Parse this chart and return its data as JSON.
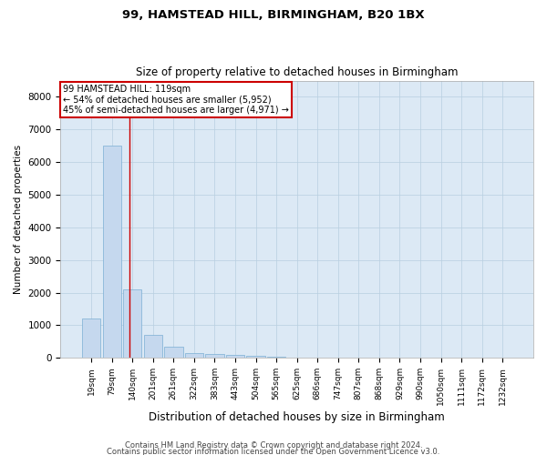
{
  "title1": "99, HAMSTEAD HILL, BIRMINGHAM, B20 1BX",
  "title2": "Size of property relative to detached houses in Birmingham",
  "xlabel": "Distribution of detached houses by size in Birmingham",
  "ylabel": "Number of detached properties",
  "categories": [
    "19sqm",
    "79sqm",
    "140sqm",
    "201sqm",
    "261sqm",
    "322sqm",
    "383sqm",
    "443sqm",
    "504sqm",
    "565sqm",
    "625sqm",
    "686sqm",
    "747sqm",
    "807sqm",
    "868sqm",
    "929sqm",
    "990sqm",
    "1050sqm",
    "1111sqm",
    "1172sqm",
    "1232sqm"
  ],
  "values": [
    1200,
    6500,
    2100,
    700,
    350,
    150,
    120,
    80,
    50,
    20,
    10,
    5,
    3,
    2,
    1,
    1,
    1,
    1,
    0,
    0,
    0
  ],
  "bar_color": "#c5d8ee",
  "bar_edge_color": "#7aaed4",
  "vline_x": 1.85,
  "vline_color": "#cc0000",
  "annotation_text": "99 HAMSTEAD HILL: 119sqm\n← 54% of detached houses are smaller (5,952)\n45% of semi-detached houses are larger (4,971) →",
  "annotation_box_color": "#ffffff",
  "annotation_box_edge_color": "#cc0000",
  "ylim": [
    0,
    8500
  ],
  "yticks": [
    0,
    1000,
    2000,
    3000,
    4000,
    5000,
    6000,
    7000,
    8000
  ],
  "footer1": "Contains HM Land Registry data © Crown copyright and database right 2024.",
  "footer2": "Contains public sector information licensed under the Open Government Licence v3.0.",
  "background_color": "#ffffff",
  "plot_bg_color": "#dce9f5",
  "grid_color": "#b8cfe0"
}
